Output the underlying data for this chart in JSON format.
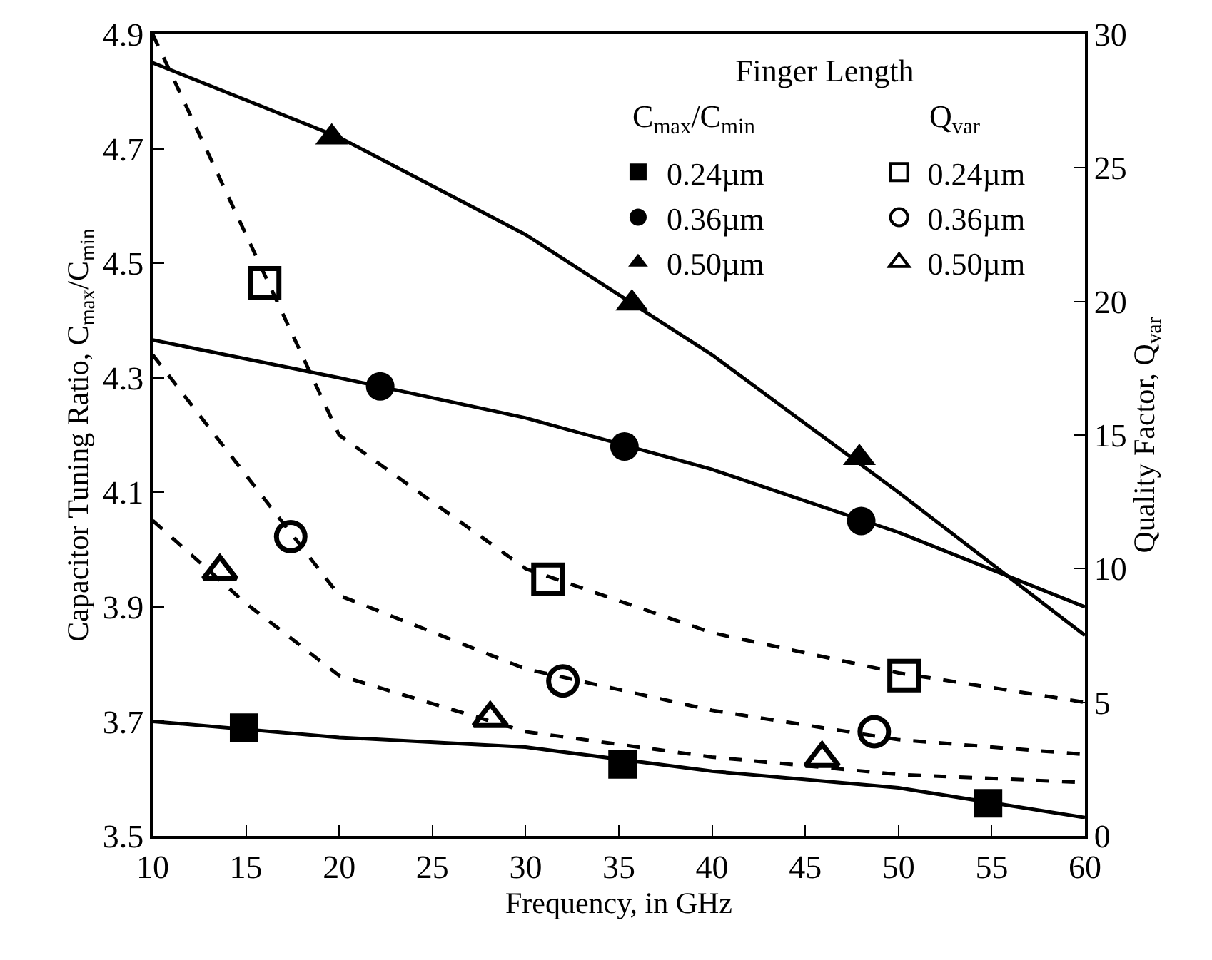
{
  "chart_data": {
    "type": "line",
    "xlabel": "Frequency, in GHz",
    "ylabel": "Capacitor Tuning Ratio, C$_{max}$/C$_{min}$",
    "y2label": "Quality Factor, Q$_{var}$",
    "xlim": [
      10,
      60
    ],
    "xticks": [
      10,
      15,
      20,
      25,
      30,
      35,
      40,
      45,
      50,
      55,
      60
    ],
    "ylim": [
      3.5,
      4.9
    ],
    "yticks": [
      3.5,
      3.7,
      3.9,
      4.1,
      4.3,
      4.5,
      4.7,
      4.9
    ],
    "y2lim": [
      0,
      30
    ],
    "y2ticks": [
      0,
      5,
      10,
      15,
      20,
      25,
      30
    ],
    "legend": "top right",
    "legend_title": "Finger Length",
    "annotations": [
      "C$_{max}$/C$_{min}$",
      "Q$_{var}$"
    ],
    "series": [
      {
        "color": "#000000",
        "line_style": "solid",
        "x": [
          10,
          20,
          30,
          40,
          50,
          60
        ],
        "values": [
          3.7,
          3.672,
          3.655,
          3.613,
          3.584,
          3.532
        ]
      },
      {
        "color": "#000000",
        "line_style": "solid",
        "x": [
          10,
          20,
          30,
          40,
          50,
          60
        ],
        "values": [
          4.366,
          4.3,
          4.23,
          4.14,
          4.03,
          3.9
        ]
      },
      {
        "color": "#000000",
        "line_style": "solid",
        "x": [
          10,
          20,
          30,
          40,
          50,
          60
        ],
        "values": [
          4.85,
          4.72,
          4.55,
          4.34,
          4.1,
          3.85
        ]
      },
      {
        "color": "#000000",
        "line_style": "dashed",
        "axis": "y2",
        "x": [
          10,
          15,
          20,
          30,
          40,
          50,
          60
        ],
        "values": [
          30,
          22.5,
          15,
          10,
          7.6,
          6.1,
          5.0
        ]
      },
      {
        "color": "#000000",
        "line_style": "dashed",
        "axis": "y2",
        "x": [
          10,
          15,
          20,
          30,
          40,
          50,
          60
        ],
        "values": [
          18,
          13.5,
          9.0,
          6.25,
          4.7,
          3.6,
          3.05
        ]
      },
      {
        "color": "#000000",
        "line_style": "dashed",
        "axis": "y2",
        "x": [
          10,
          15,
          20,
          30,
          40,
          50,
          60
        ],
        "values": [
          11.8,
          8.7,
          6.0,
          3.9,
          2.95,
          2.3,
          2.0
        ]
      },
      {
        "type": "scatter",
        "name": "0.24µm",
        "color": "#000000",
        "marker": "square",
        "x": [
          14.9,
          35.2,
          54.8
        ],
        "values": [
          3.689,
          3.625,
          3.557
        ]
      },
      {
        "type": "scatter",
        "name": "0.36µm",
        "color": "#000000",
        "marker": "circle",
        "x": [
          22.2,
          35.3,
          48.0
        ],
        "values": [
          4.285,
          4.18,
          4.05
        ]
      },
      {
        "type": "scatter",
        "name": "0.50µm",
        "color": "#000000",
        "marker": "triangle",
        "x": [
          19.6,
          35.7,
          47.9
        ],
        "values": [
          4.72,
          4.43,
          4.16
        ]
      },
      {
        "type": "scatter",
        "name": "0.24µm",
        "color": "#000000",
        "marker": "square-open",
        "axis": "y2",
        "x": [
          16.0,
          31.2,
          50.3
        ],
        "values": [
          20.7,
          9.6,
          6.0
        ]
      },
      {
        "type": "scatter",
        "name": "0.36µm",
        "color": "#000000",
        "marker": "circle-open",
        "axis": "y2",
        "x": [
          17.4,
          32.0,
          48.7
        ],
        "values": [
          11.2,
          5.8,
          3.9
        ]
      },
      {
        "type": "scatter",
        "name": "0.50µm",
        "color": "#000000",
        "marker": "triangle-open",
        "axis": "y2",
        "x": [
          13.6,
          28.1,
          45.9
        ],
        "values": [
          9.9,
          4.4,
          2.9
        ]
      }
    ]
  }
}
